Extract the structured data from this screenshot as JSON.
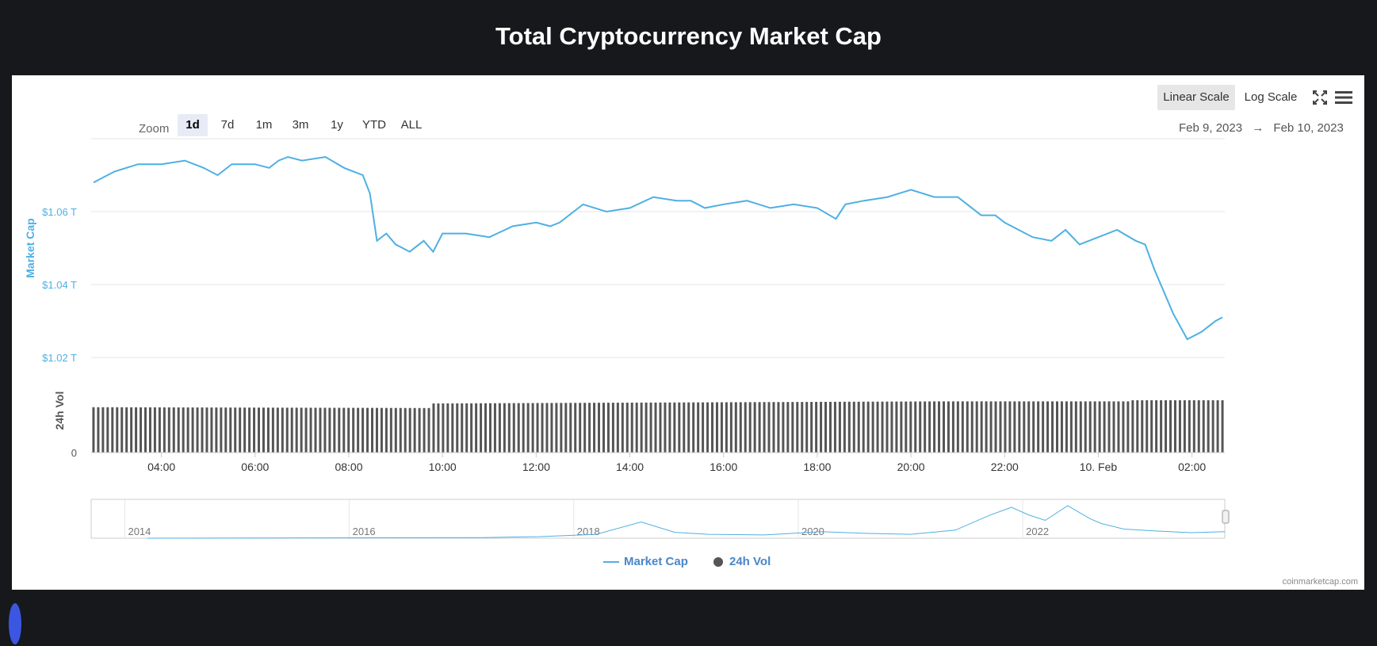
{
  "title": "Total Cryptocurrency Market Cap",
  "toolbar": {
    "zoom_label": "Zoom",
    "zoom_options": [
      "1d",
      "7d",
      "1m",
      "3m",
      "1y",
      "YTD",
      "ALL"
    ],
    "zoom_active": "1d",
    "linear_scale": "Linear Scale",
    "log_scale": "Log Scale",
    "active_scale": "Linear Scale",
    "date_from": "Feb 9, 2023",
    "date_sep": "→",
    "date_to": "Feb 10, 2023"
  },
  "legend": {
    "market_cap": "Market Cap",
    "volume": "24h Vol"
  },
  "credit": "coinmarketcap.com",
  "colors": {
    "line": "#4eb0e3",
    "bars": "#555555",
    "axis_text": "#555555",
    "ylabel": "#4eb0e3",
    "background": "#17181b"
  },
  "chart_data": {
    "type": "line",
    "title": "Total Cryptocurrency Market Cap",
    "xlabel": "",
    "ylabel": "Market Cap",
    "y2label": "24h Vol",
    "ylim": [
      1.02,
      1.08
    ],
    "yticks": [
      "$1.02 T",
      "$1.04 T",
      "$1.06 T"
    ],
    "ytick_values": [
      1.02,
      1.04,
      1.06
    ],
    "y2ticks": [
      "0"
    ],
    "xlim": [
      2.5,
      26.7
    ],
    "xticks": [
      "04:00",
      "06:00",
      "08:00",
      "10:00",
      "12:00",
      "14:00",
      "16:00",
      "18:00",
      "20:00",
      "22:00",
      "10. Feb",
      "02:00"
    ],
    "xtick_values": [
      4,
      6,
      8,
      10,
      12,
      14,
      16,
      18,
      20,
      22,
      24,
      26
    ],
    "grid": true,
    "legend": "bottom-center",
    "series": [
      {
        "name": "Market Cap",
        "x": [
          2.55,
          3.0,
          3.5,
          4.0,
          4.5,
          4.9,
          5.2,
          5.5,
          6.0,
          6.3,
          6.5,
          6.7,
          7.0,
          7.5,
          7.9,
          8.1,
          8.3,
          8.45,
          8.6,
          8.8,
          9.0,
          9.3,
          9.6,
          9.8,
          10.0,
          10.5,
          11.0,
          11.5,
          12.0,
          12.3,
          12.5,
          13.0,
          13.5,
          14.0,
          14.5,
          15.0,
          15.3,
          15.6,
          16.0,
          16.5,
          17.0,
          17.5,
          18.0,
          18.4,
          18.6,
          19.0,
          19.5,
          20.0,
          20.5,
          21.0,
          21.5,
          21.8,
          22.0,
          22.3,
          22.6,
          23.0,
          23.3,
          23.6,
          24.0,
          24.4,
          24.8,
          25.0,
          25.2,
          25.4,
          25.6,
          25.9,
          26.2,
          26.5,
          26.65
        ],
        "values": [
          1.068,
          1.071,
          1.073,
          1.073,
          1.074,
          1.072,
          1.07,
          1.073,
          1.073,
          1.072,
          1.074,
          1.075,
          1.074,
          1.075,
          1.072,
          1.071,
          1.07,
          1.065,
          1.052,
          1.054,
          1.051,
          1.049,
          1.052,
          1.049,
          1.054,
          1.054,
          1.053,
          1.056,
          1.057,
          1.056,
          1.057,
          1.062,
          1.06,
          1.061,
          1.064,
          1.063,
          1.063,
          1.061,
          1.062,
          1.063,
          1.061,
          1.062,
          1.061,
          1.058,
          1.062,
          1.063,
          1.064,
          1.066,
          1.064,
          1.064,
          1.059,
          1.059,
          1.057,
          1.055,
          1.053,
          1.052,
          1.055,
          1.051,
          1.053,
          1.055,
          1.052,
          1.051,
          1.044,
          1.038,
          1.032,
          1.025,
          1.027,
          1.03,
          1.031
        ]
      },
      {
        "name": "24h Vol",
        "type": "bar",
        "x_start": 2.55,
        "x_end": 26.65,
        "count": 240,
        "relative_values_start": 0.82,
        "relative_values_end": 0.9
      }
    ]
  },
  "navigator": {
    "year_labels": [
      "2014",
      "2016",
      "2018",
      "2020",
      "2022"
    ],
    "x": [
      2013.5,
      2015.0,
      2016.5,
      2017.0,
      2017.5,
      2017.9,
      2018.2,
      2018.5,
      2019.0,
      2019.5,
      2019.9,
      2020.3,
      2020.7,
      2021.0,
      2021.2,
      2021.35,
      2021.5,
      2021.7,
      2021.9,
      2022.0,
      2022.2,
      2022.5,
      2022.8,
      2023.1
    ],
    "values": [
      0.0,
      0.01,
      0.02,
      0.05,
      0.12,
      0.5,
      0.18,
      0.12,
      0.1,
      0.2,
      0.15,
      0.12,
      0.25,
      0.7,
      0.95,
      0.72,
      0.55,
      1.0,
      0.6,
      0.45,
      0.28,
      0.22,
      0.17,
      0.2
    ]
  }
}
